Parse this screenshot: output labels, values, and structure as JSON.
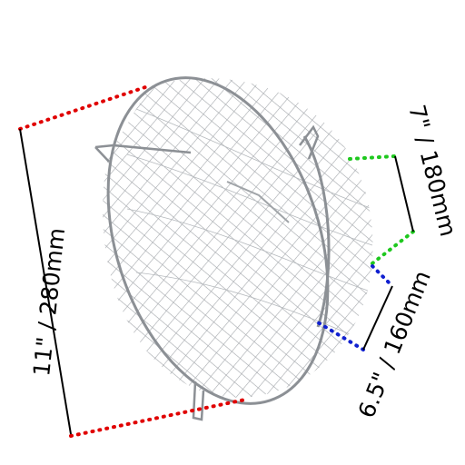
{
  "dimensions": {
    "height": "11\" / 280mm",
    "large_diameter": "7\" / 180mm",
    "small_diameter": "6.5\" / 160mm"
  }
}
